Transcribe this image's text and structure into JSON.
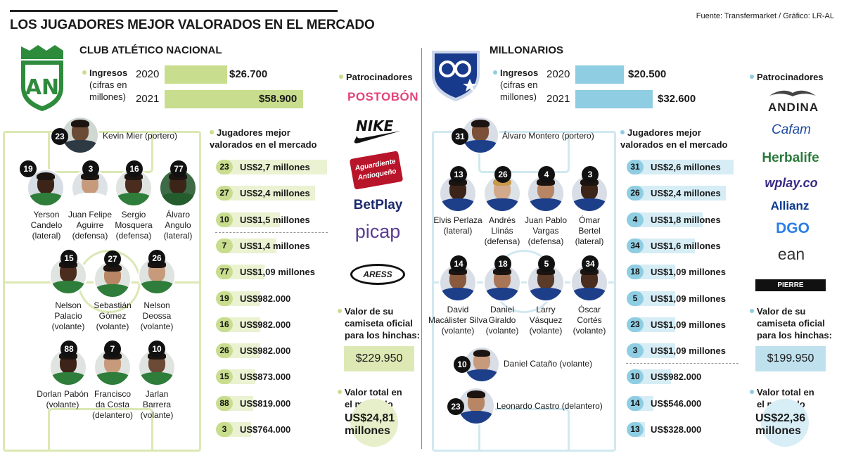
{
  "title": "LOS JUGADORES MEJOR VALORADOS EN EL MERCADO",
  "source": "Fuente: Transfermarket / Gráfico: LR-AL",
  "labels": {
    "ingresos": "Ingresos",
    "ingresos_sub1": "(cifras en",
    "ingresos_sub2": "millones)",
    "jugadores1": "Jugadores mejor",
    "jugadores2": "valorados en el mercado",
    "patrocinadores": "Patrocinadores",
    "camiseta1": "Valor de su",
    "camiseta2": "camiseta oficial",
    "camiseta3": "para los hinchas:",
    "total1": "Valor total en",
    "total2": "el mercado"
  },
  "colors": {
    "nacional": "#c9dd8e",
    "millonarios": "#8fcde2"
  },
  "nacional": {
    "name": "CLUB ATLÉTICO NACIONAL",
    "ingresos": [
      {
        "year": "2020",
        "value": "$26.700",
        "amount": 26700
      },
      {
        "year": "2021",
        "value": "$58.900",
        "amount": 58900
      }
    ],
    "players": [
      {
        "num": "23",
        "name": "Kevin Mier (portero)"
      },
      {
        "num": "19",
        "l1": "Yerson",
        "l2": "Candelo",
        "l3": "(lateral)"
      },
      {
        "num": "3",
        "l1": "Juan Felipe",
        "l2": "Aguirre",
        "l3": "(defensa)"
      },
      {
        "num": "16",
        "l1": "Sergio",
        "l2": "Mosquera",
        "l3": "(defensa)"
      },
      {
        "num": "77",
        "l1": "Álvaro",
        "l2": "Angulo",
        "l3": "(lateral)"
      },
      {
        "num": "15",
        "l1": "Nelson",
        "l2": "Palacio",
        "l3": "(volante)"
      },
      {
        "num": "27",
        "l1": "Sebastián",
        "l2": "Gómez",
        "l3": "(volante)"
      },
      {
        "num": "26",
        "l1": "Nelson",
        "l2": "Deossa",
        "l3": "(volante)"
      },
      {
        "num": "88",
        "l1": "Dorlan Pabón",
        "l2": "(volante)"
      },
      {
        "num": "7",
        "l1": "Francisco",
        "l2": "da Costa",
        "l3": "(delantero)"
      },
      {
        "num": "10",
        "l1": "Jarlan",
        "l2": "Barrera",
        "l3": "(volante)"
      }
    ],
    "ranking": [
      {
        "num": "23",
        "value": "US$2,7 millones",
        "amount": 2.7
      },
      {
        "num": "27",
        "value": "US$2,4 millones",
        "amount": 2.4
      },
      {
        "num": "10",
        "value": "US$1,5 millones",
        "amount": 1.5
      },
      {
        "num": "7",
        "value": "US$1,4 millones",
        "amount": 1.4
      },
      {
        "num": "77",
        "value": "US$1,09 millones",
        "amount": 1.09
      },
      {
        "num": "19",
        "value": "US$982.000",
        "amount": 0.982
      },
      {
        "num": "16",
        "value": "US$982.000",
        "amount": 0.982
      },
      {
        "num": "26",
        "value": "US$982.000",
        "amount": 0.982
      },
      {
        "num": "15",
        "value": "US$873.000",
        "amount": 0.873
      },
      {
        "num": "88",
        "value": "US$819.000",
        "amount": 0.819
      },
      {
        "num": "3",
        "value": "US$764.000",
        "amount": 0.764
      }
    ],
    "sponsors": [
      "POSTOBÓN",
      "NIKE",
      "Aguardiente Antioqueño",
      "BetPlay",
      "picap",
      "ARESS"
    ],
    "camiseta": "$229.950",
    "total1": "US$24,81",
    "total2": "millones"
  },
  "millonarios": {
    "name": "MILLONARIOS",
    "ingresos": [
      {
        "year": "2020",
        "value": "$20.500",
        "amount": 20500
      },
      {
        "year": "2021",
        "value": "$32.600",
        "amount": 32600
      }
    ],
    "players": [
      {
        "num": "31",
        "name": "Álvaro Montero (portero)"
      },
      {
        "num": "13",
        "l1": "Elvis Perlaza",
        "l2": "(lateral)"
      },
      {
        "num": "26",
        "l1": "Andrés",
        "l2": "Llinás",
        "l3": "(defensa)"
      },
      {
        "num": "4",
        "l1": "Juan Pablo",
        "l2": "Vargas",
        "l3": "(defensa)"
      },
      {
        "num": "3",
        "l1": "Ómar",
        "l2": "Bertel",
        "l3": "(lateral)"
      },
      {
        "num": "14",
        "l1": "David",
        "l2": "Macálister Silva",
        "l3": "(volante)"
      },
      {
        "num": "18",
        "l1": "Daniel",
        "l2": "Giraldo",
        "l3": "(volante)"
      },
      {
        "num": "5",
        "l1": "Larry",
        "l2": "Vásquez",
        "l3": "(volante)"
      },
      {
        "num": "34",
        "l1": "Óscar",
        "l2": "Cortés",
        "l3": "(volante)"
      },
      {
        "num": "10",
        "name": "Daniel Cataño (volante)"
      },
      {
        "num": "23",
        "name": "Leonardo Castro (delantero)"
      }
    ],
    "ranking": [
      {
        "num": "31",
        "value": "US$2,6 millones",
        "amount": 2.6
      },
      {
        "num": "26",
        "value": "US$2,4 millones",
        "amount": 2.4
      },
      {
        "num": "4",
        "value": "US$1,8 millones",
        "amount": 1.8
      },
      {
        "num": "34",
        "value": "US$1,6 millones",
        "amount": 1.6
      },
      {
        "num": "18",
        "value": "US$1,09 millones",
        "amount": 1.09
      },
      {
        "num": "5",
        "value": "US$1,09 millones",
        "amount": 1.09
      },
      {
        "num": "23",
        "value": "US$1,09 millones",
        "amount": 1.09
      },
      {
        "num": "3",
        "value": "US$1,09 millones",
        "amount": 1.09
      },
      {
        "num": "10",
        "value": "US$982.000",
        "amount": 0.982
      },
      {
        "num": "14",
        "value": "US$546.000",
        "amount": 0.546
      },
      {
        "num": "13",
        "value": "US$328.000",
        "amount": 0.328
      }
    ],
    "sponsors": [
      "ANDINA",
      "Cafam",
      "Herbalife",
      "wplay.co",
      "Allianz",
      "DGO",
      "ean",
      "PIERRE D'AGOSTINY"
    ],
    "camiseta": "$199.950",
    "total1": "US$22,36",
    "total2": "millones"
  }
}
